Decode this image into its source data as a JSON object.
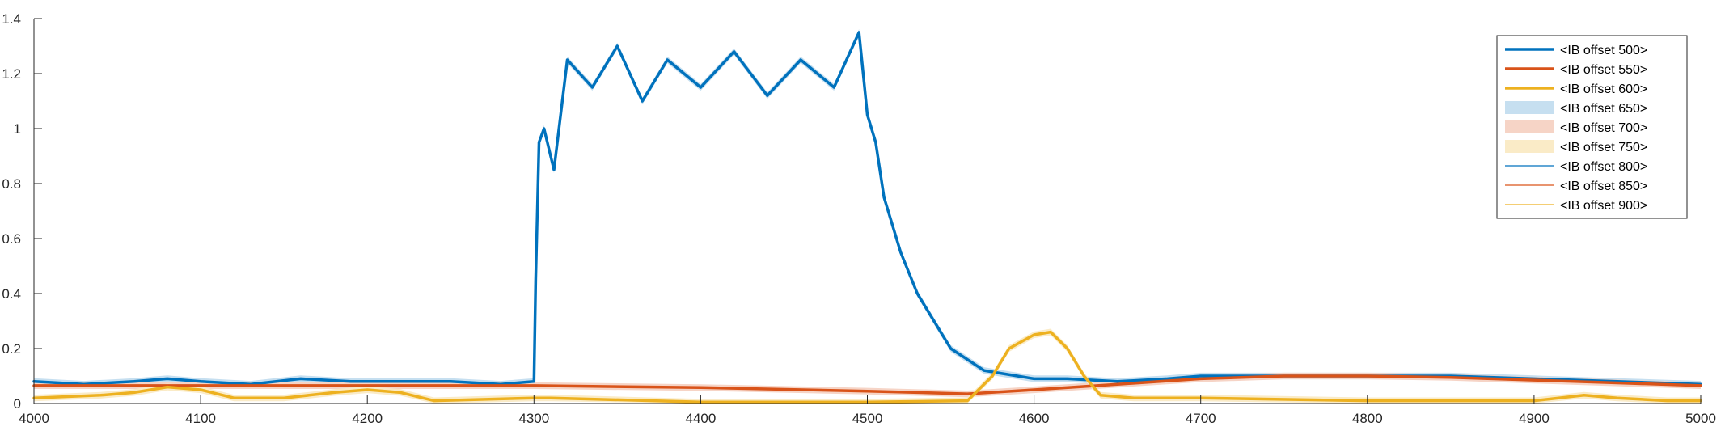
{
  "chart_data": {
    "type": "line",
    "title": "",
    "xlabel": "",
    "ylabel": "",
    "xlim": [
      4000,
      5000
    ],
    "ylim": [
      0,
      1.4
    ],
    "xticks": [
      4000,
      4100,
      4200,
      4300,
      4400,
      4500,
      4600,
      4700,
      4800,
      4900,
      5000
    ],
    "yticks": [
      0,
      0.2,
      0.4,
      0.6,
      0.8,
      1,
      1.2,
      1.4
    ],
    "xtick_labels": [
      "4000",
      "4100",
      "4200",
      "4300",
      "4400",
      "4500",
      "4600",
      "4700",
      "4800",
      "4900",
      "5000"
    ],
    "ytick_labels": [
      "0",
      "0.2",
      "0.4",
      "0.6",
      "0.8",
      "1",
      "1.2",
      "1.4"
    ],
    "grid": false,
    "legend_position": "top-right",
    "colors": {
      "blue": "#0072BD",
      "orange": "#D95319",
      "yellow": "#EDB120",
      "blue_fill": "#c6dff0",
      "orange_fill": "#f6d4c6",
      "yellow_fill": "#faebc7",
      "axis": "#262626"
    },
    "series": [
      {
        "name": "<IB offset 500>",
        "color": "#0072BD",
        "style": "thick-line",
        "x": [
          4000,
          4030,
          4060,
          4080,
          4100,
          4130,
          4160,
          4190,
          4220,
          4250,
          4280,
          4300,
          4301,
          4303,
          4306,
          4312,
          4320,
          4335,
          4350,
          4365,
          4380,
          4400,
          4420,
          4440,
          4460,
          4480,
          4495,
          4500,
          4505,
          4510,
          4520,
          4530,
          4540,
          4550,
          4560,
          4570,
          4580,
          4590,
          4600,
          4620,
          4650,
          4680,
          4700,
          4750,
          4800,
          4850,
          4900,
          4950,
          5000
        ],
        "y": [
          0.08,
          0.07,
          0.08,
          0.09,
          0.08,
          0.07,
          0.09,
          0.08,
          0.08,
          0.08,
          0.07,
          0.08,
          0.45,
          0.95,
          1.0,
          0.85,
          1.25,
          1.15,
          1.3,
          1.1,
          1.25,
          1.15,
          1.28,
          1.12,
          1.25,
          1.15,
          1.35,
          1.05,
          0.95,
          0.75,
          0.55,
          0.4,
          0.3,
          0.2,
          0.16,
          0.12,
          0.11,
          0.1,
          0.09,
          0.09,
          0.08,
          0.09,
          0.1,
          0.1,
          0.1,
          0.1,
          0.09,
          0.08,
          0.07
        ]
      },
      {
        "name": "<IB offset 550>",
        "color": "#D95319",
        "style": "thick-line",
        "x": [
          4000,
          4100,
          4200,
          4300,
          4400,
          4500,
          4560,
          4600,
          4650,
          4700,
          4750,
          4800,
          4850,
          4900,
          4950,
          5000
        ],
        "y": [
          0.065,
          0.065,
          0.065,
          0.065,
          0.058,
          0.045,
          0.035,
          0.05,
          0.07,
          0.09,
          0.1,
          0.1,
          0.095,
          0.085,
          0.075,
          0.065
        ]
      },
      {
        "name": "<IB offset 600>",
        "color": "#EDB120",
        "style": "thick-line",
        "x": [
          4000,
          4040,
          4060,
          4080,
          4100,
          4120,
          4150,
          4180,
          4200,
          4220,
          4240,
          4300,
          4310,
          4400,
          4500,
          4560,
          4575,
          4585,
          4600,
          4610,
          4620,
          4630,
          4640,
          4660,
          4700,
          4800,
          4900,
          4930,
          4950,
          4980,
          5000
        ],
        "y": [
          0.02,
          0.03,
          0.04,
          0.06,
          0.05,
          0.02,
          0.02,
          0.04,
          0.05,
          0.04,
          0.01,
          0.02,
          0.02,
          0.005,
          0.005,
          0.01,
          0.1,
          0.2,
          0.25,
          0.26,
          0.2,
          0.1,
          0.03,
          0.02,
          0.02,
          0.01,
          0.01,
          0.03,
          0.02,
          0.01,
          0.01
        ]
      },
      {
        "name": "<IB offset 650>",
        "color": "#c6dff0",
        "style": "fill"
      },
      {
        "name": "<IB offset 700>",
        "color": "#f6d4c6",
        "style": "fill"
      },
      {
        "name": "<IB offset 750>",
        "color": "#faebc7",
        "style": "fill"
      },
      {
        "name": "<IB offset 800>",
        "color": "#0072BD",
        "style": "thin-line"
      },
      {
        "name": "<IB offset 850>",
        "color": "#D95319",
        "style": "thin-line"
      },
      {
        "name": "<IB offset 900>",
        "color": "#EDB120",
        "style": "thin-line"
      }
    ]
  }
}
